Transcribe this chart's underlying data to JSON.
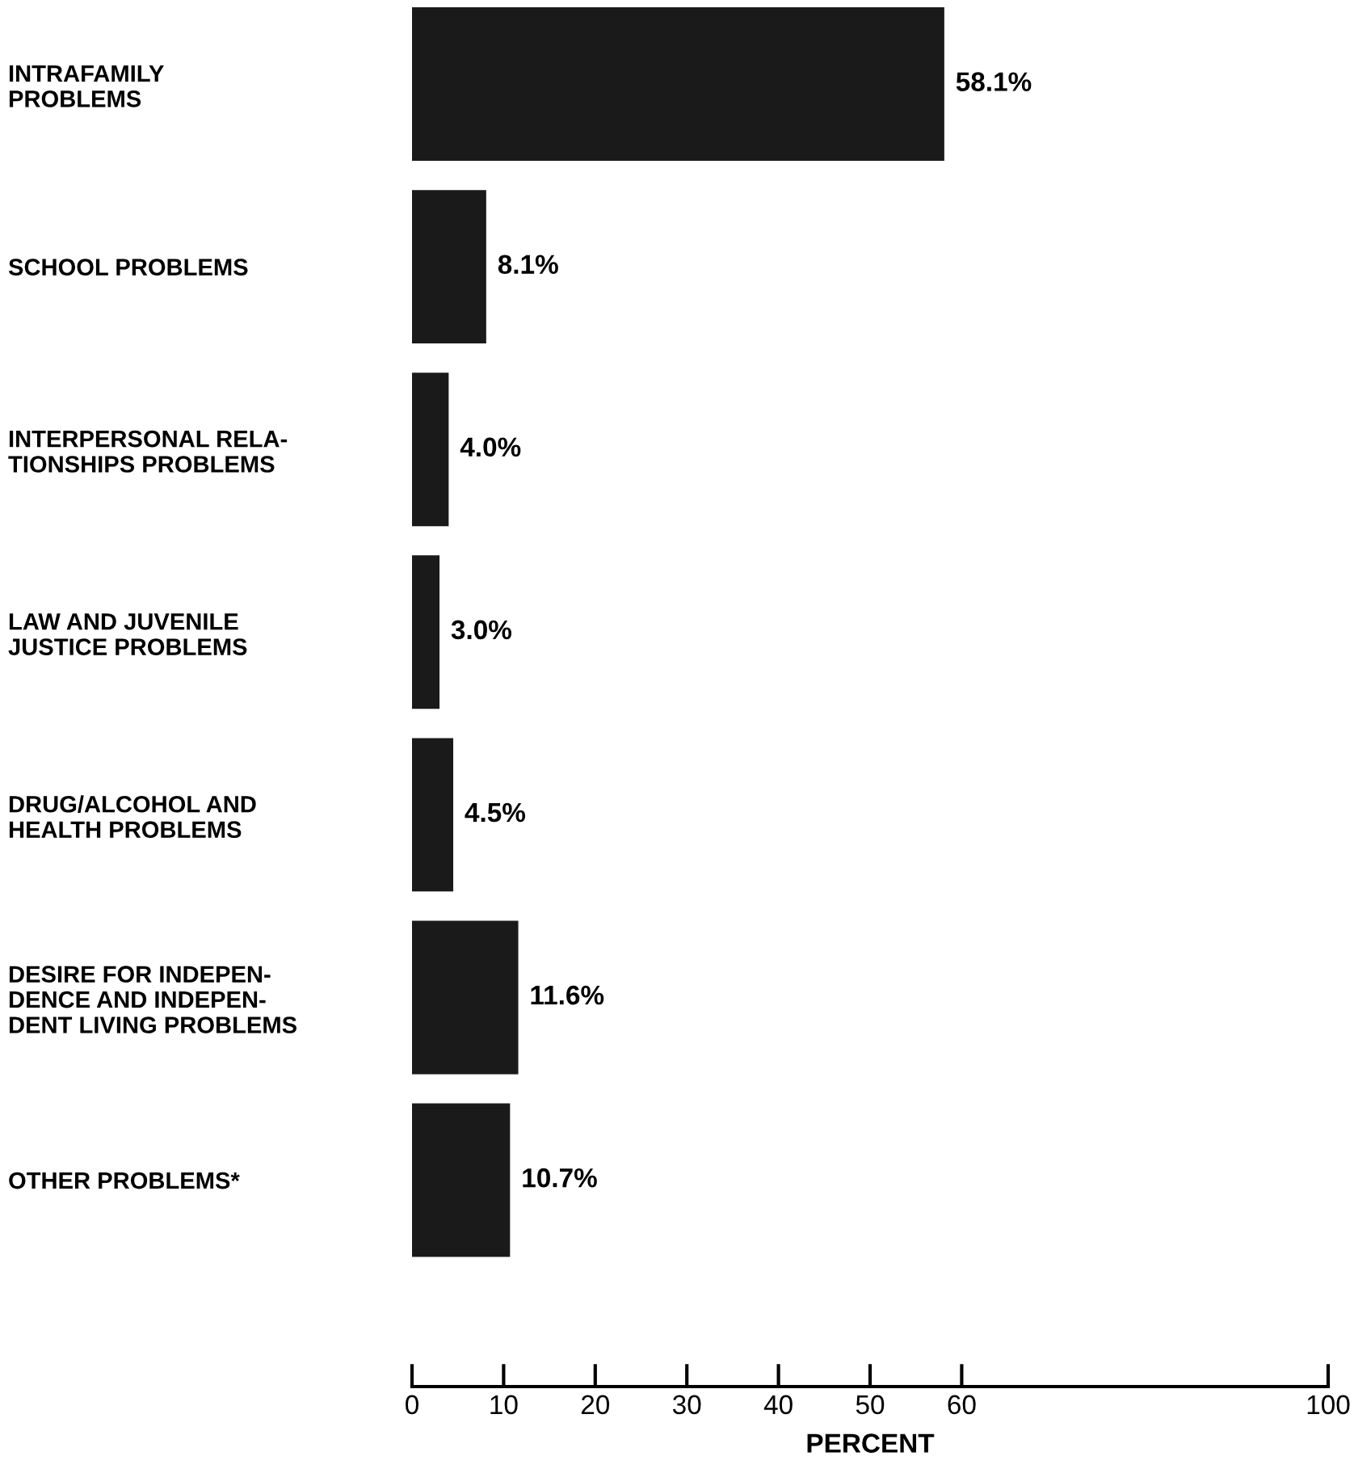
{
  "chart_data": {
    "type": "bar",
    "orientation": "horizontal",
    "categories": [
      "INTRAFAMILY\nPROBLEMS",
      "SCHOOL PROBLEMS",
      "INTERPERSONAL RELA-\nTIONSHIPS PROBLEMS",
      "LAW AND JUVENILE\nJUSTICE PROBLEMS",
      "DRUG/ALCOHOL AND\nHEALTH PROBLEMS",
      "DESIRE FOR INDEPEN-\nDENCE AND INDEPEN-\nDENT LIVING PROBLEMS",
      "OTHER PROBLEMS*"
    ],
    "values": [
      58.1,
      8.1,
      4.0,
      3.0,
      4.5,
      11.6,
      10.7
    ],
    "value_labels": [
      "58.1%",
      "8.1%",
      "4.0%",
      "3.0%",
      "4.5%",
      "11.6%",
      "10.7%"
    ],
    "color": "#1a1a1a",
    "xlim": [
      0,
      100
    ],
    "xticks": [
      0,
      10,
      20,
      30,
      40,
      50,
      60,
      100
    ],
    "xlabel": "PERCENT",
    "grid": false,
    "legend": false
  }
}
